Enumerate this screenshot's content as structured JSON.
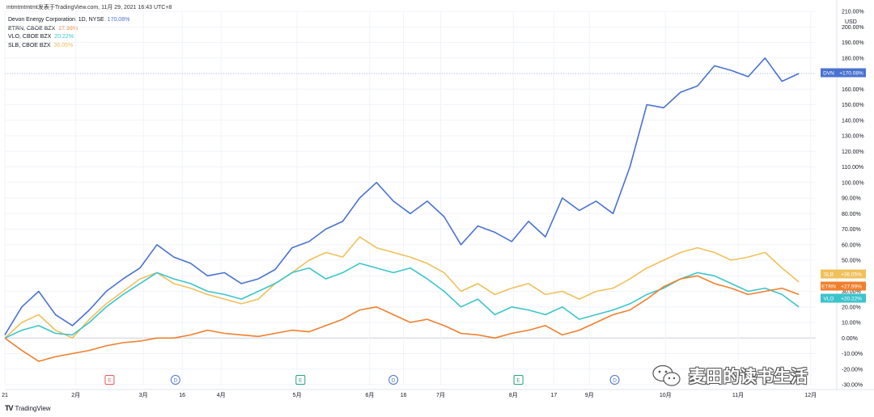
{
  "header": {
    "title": "mtmtmtmtmt发表于TradingView.com, 11月 29, 2021 16:43 UTC+8"
  },
  "footer": {
    "logo": "TV",
    "label": "TradingView"
  },
  "watermark": {
    "text": "麦田的读书生活",
    "icon": "wechat-icon"
  },
  "colors": {
    "DVN": "#4a72d0",
    "ETRN": "#f07f2c",
    "VLO": "#3cc4cc",
    "SLB": "#f0c05a",
    "grid": "#f0f3fa",
    "axis": "#131722",
    "zero": "#cfd3da"
  },
  "chart_data": {
    "type": "line",
    "x_unit": "trading week of 2021",
    "y_unit": "percent change",
    "ylim": [
      -30,
      210
    ],
    "ytick_labels": [
      "-30.00%",
      "-20.00%",
      "-10.00%",
      "0.00%",
      "10.00%",
      "20.00%",
      "30.00%",
      "40.00%",
      "50.00%",
      "60.00%",
      "70.00%",
      "80.00%",
      "90.00%",
      "100.00%",
      "110.00%",
      "120.00%",
      "130.00%",
      "140.00%",
      "150.00%",
      "160.00%",
      "170.00%",
      "180.00%",
      "190.00%",
      "200.00%",
      "210.00%"
    ],
    "ytick_values": [
      -30,
      -20,
      -10,
      0,
      10,
      20,
      30,
      40,
      50,
      60,
      70,
      80,
      90,
      100,
      110,
      120,
      130,
      140,
      150,
      160,
      170,
      180,
      190,
      200,
      210
    ],
    "y_axis_unit_label": "USD",
    "xlim": [
      0,
      48
    ],
    "xtick_labels": [
      "21",
      "2月",
      "3月",
      "16",
      "4月",
      "5月",
      "6月",
      "16",
      "7月",
      "8月",
      "17",
      "9月",
      "10月",
      "11月",
      "12月"
    ],
    "xtick_values": [
      0,
      4.2,
      8.2,
      10.5,
      12.8,
      17.3,
      21.6,
      23.6,
      25.8,
      30.1,
      32.5,
      34.6,
      39.1,
      43.4,
      47.7
    ],
    "events": [
      {
        "label": "E",
        "x": 6.2,
        "color": "#e05a5a"
      },
      {
        "label": "D",
        "x": 10.1,
        "color": "#4a72d0"
      },
      {
        "label": "E",
        "x": 17.5,
        "color": "#27a17a"
      },
      {
        "label": "D",
        "x": 23.0,
        "color": "#4a72d0"
      },
      {
        "label": "E",
        "x": 30.4,
        "color": "#27a17a"
      },
      {
        "label": "D",
        "x": 36.1,
        "color": "#4a72d0"
      }
    ],
    "series": [
      {
        "name": "DVN",
        "legend": "Devon Energy Corporation, 1D, NYSE",
        "last_label": "170.08%",
        "badge": "DVN",
        "badge_value": "+170.08%",
        "color": "#4a72d0",
        "x": [
          0,
          1,
          2,
          3,
          4,
          5,
          6,
          7,
          8,
          9,
          10,
          11,
          12,
          13,
          14,
          15,
          16,
          17,
          18,
          19,
          20,
          21,
          22,
          23,
          24,
          25,
          26,
          27,
          28,
          29,
          30,
          31,
          32,
          33,
          34,
          35,
          36,
          37,
          38,
          39,
          40,
          41,
          42,
          43,
          44,
          45,
          46,
          47
        ],
        "y": [
          2,
          20,
          30,
          15,
          8,
          18,
          30,
          38,
          45,
          60,
          52,
          48,
          40,
          42,
          35,
          38,
          44,
          58,
          62,
          70,
          75,
          90,
          100,
          88,
          80,
          88,
          78,
          60,
          72,
          68,
          62,
          75,
          65,
          90,
          82,
          88,
          80,
          110,
          150,
          148,
          158,
          162,
          175,
          172,
          168,
          180,
          165,
          170
        ]
      },
      {
        "name": "ETRN",
        "legend": "ETRN, CBOE BZX",
        "last_label": "27.99%",
        "badge": "ETRN",
        "badge_value": "+27.99%",
        "color": "#f07f2c",
        "x": [
          0,
          1,
          2,
          3,
          4,
          5,
          6,
          7,
          8,
          9,
          10,
          11,
          12,
          13,
          14,
          15,
          16,
          17,
          18,
          19,
          20,
          21,
          22,
          23,
          24,
          25,
          26,
          27,
          28,
          29,
          30,
          31,
          32,
          33,
          34,
          35,
          36,
          37,
          38,
          39,
          40,
          41,
          42,
          43,
          44,
          45,
          46,
          47
        ],
        "y": [
          0,
          -8,
          -15,
          -12,
          -10,
          -8,
          -5,
          -3,
          -2,
          0,
          0,
          2,
          5,
          3,
          2,
          1,
          3,
          5,
          4,
          8,
          12,
          18,
          20,
          15,
          10,
          12,
          8,
          3,
          2,
          0,
          3,
          5,
          8,
          2,
          5,
          10,
          15,
          18,
          25,
          33,
          38,
          40,
          35,
          32,
          28,
          30,
          32,
          28
        ]
      },
      {
        "name": "VLO",
        "legend": "VLO, CBOE BZX",
        "last_label": "20.22%",
        "badge": "VLO",
        "badge_value": "+20.22%",
        "color": "#3cc4cc",
        "x": [
          0,
          1,
          2,
          3,
          4,
          5,
          6,
          7,
          8,
          9,
          10,
          11,
          12,
          13,
          14,
          15,
          16,
          17,
          18,
          19,
          20,
          21,
          22,
          23,
          24,
          25,
          26,
          27,
          28,
          29,
          30,
          31,
          32,
          33,
          34,
          35,
          36,
          37,
          38,
          39,
          40,
          41,
          42,
          43,
          44,
          45,
          46,
          47
        ],
        "y": [
          0,
          5,
          8,
          3,
          2,
          10,
          20,
          28,
          35,
          42,
          38,
          35,
          30,
          28,
          25,
          30,
          35,
          42,
          45,
          38,
          42,
          48,
          45,
          42,
          45,
          38,
          30,
          20,
          25,
          15,
          20,
          18,
          15,
          20,
          12,
          15,
          18,
          22,
          28,
          32,
          38,
          42,
          40,
          35,
          30,
          32,
          28,
          20
        ]
      },
      {
        "name": "SLB",
        "legend": "SLB, CBOE BZX",
        "last_label": "36.05%",
        "badge": "SLB",
        "badge_value": "+36.05%",
        "color": "#f0c05a",
        "x": [
          0,
          1,
          2,
          3,
          4,
          5,
          6,
          7,
          8,
          9,
          10,
          11,
          12,
          13,
          14,
          15,
          16,
          17,
          18,
          19,
          20,
          21,
          22,
          23,
          24,
          25,
          26,
          27,
          28,
          29,
          30,
          31,
          32,
          33,
          34,
          35,
          36,
          37,
          38,
          39,
          40,
          41,
          42,
          43,
          44,
          45,
          46,
          47
        ],
        "y": [
          0,
          10,
          15,
          5,
          0,
          12,
          22,
          30,
          38,
          42,
          35,
          32,
          28,
          25,
          22,
          25,
          35,
          42,
          50,
          55,
          52,
          65,
          58,
          55,
          52,
          48,
          42,
          30,
          35,
          28,
          32,
          35,
          28,
          30,
          25,
          30,
          32,
          38,
          45,
          50,
          55,
          58,
          55,
          50,
          52,
          55,
          45,
          36
        ]
      }
    ]
  }
}
